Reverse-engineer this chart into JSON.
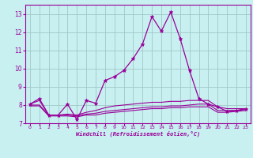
{
  "x": [
    0,
    1,
    2,
    3,
    4,
    5,
    6,
    7,
    8,
    9,
    10,
    11,
    12,
    13,
    14,
    15,
    16,
    17,
    18,
    19,
    20,
    21,
    22,
    23
  ],
  "line1": [
    8.05,
    8.35,
    7.45,
    7.45,
    8.05,
    7.2,
    8.25,
    8.1,
    9.35,
    9.55,
    9.9,
    10.55,
    11.35,
    12.85,
    12.05,
    13.1,
    11.65,
    9.9,
    8.35,
    8.05,
    7.9,
    7.65,
    7.7,
    7.8
  ],
  "line2": [
    8.05,
    8.25,
    7.45,
    7.45,
    7.5,
    7.45,
    7.6,
    7.7,
    7.85,
    7.95,
    8.0,
    8.05,
    8.1,
    8.15,
    8.15,
    8.2,
    8.2,
    8.25,
    8.25,
    8.25,
    7.9,
    7.8,
    7.8,
    7.8
  ],
  "line3": [
    8.0,
    8.0,
    7.45,
    7.45,
    7.45,
    7.4,
    7.5,
    7.55,
    7.65,
    7.7,
    7.75,
    7.8,
    7.85,
    7.9,
    7.9,
    7.95,
    7.95,
    8.0,
    8.05,
    8.05,
    7.7,
    7.7,
    7.7,
    7.75
  ],
  "line4": [
    7.95,
    7.95,
    7.4,
    7.4,
    7.4,
    7.35,
    7.45,
    7.45,
    7.55,
    7.6,
    7.65,
    7.7,
    7.75,
    7.8,
    7.8,
    7.85,
    7.85,
    7.9,
    7.9,
    7.9,
    7.6,
    7.6,
    7.65,
    7.7
  ],
  "bg_color": "#c8f0f0",
  "grid_color": "#a0c8c8",
  "line_color": "#990099",
  "xlabel": "Windchill (Refroidissement éolien,°C)",
  "ylim": [
    7.0,
    13.5
  ],
  "xlim": [
    -0.5,
    23.5
  ],
  "yticks": [
    7,
    8,
    9,
    10,
    11,
    12,
    13
  ],
  "xticks": [
    0,
    1,
    2,
    3,
    4,
    5,
    6,
    7,
    8,
    9,
    10,
    11,
    12,
    13,
    14,
    15,
    16,
    17,
    18,
    19,
    20,
    21,
    22,
    23
  ]
}
